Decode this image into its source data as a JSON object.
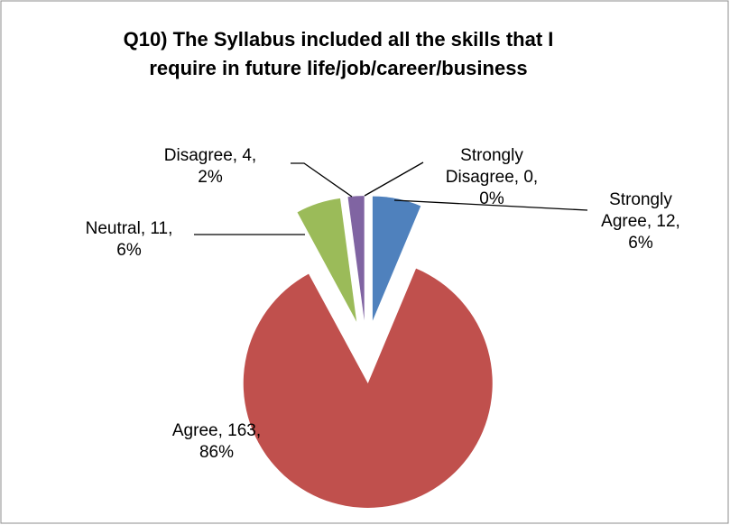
{
  "chart_data": {
    "type": "pie",
    "title": "Q10) The Syllabus included all the skills that I\nrequire in future life/job/career/business",
    "categories": [
      "Strongly Agree",
      "Agree",
      "Neutral",
      "Disagree",
      "Strongly Disagree"
    ],
    "values": [
      12,
      163,
      11,
      4,
      0
    ],
    "value_labels": [
      "Strongly\nAgree, 12,\n6%",
      "Agree, 163,\n86%",
      "Neutral, 11,\n6%",
      "Disagree, 4,\n2%",
      "Strongly\nDisagree, 0,\n0%"
    ],
    "colors": [
      "#4f81bd",
      "#c0504d",
      "#9bbb59",
      "#8064a2",
      "#4bacc6"
    ],
    "exploded": true
  }
}
